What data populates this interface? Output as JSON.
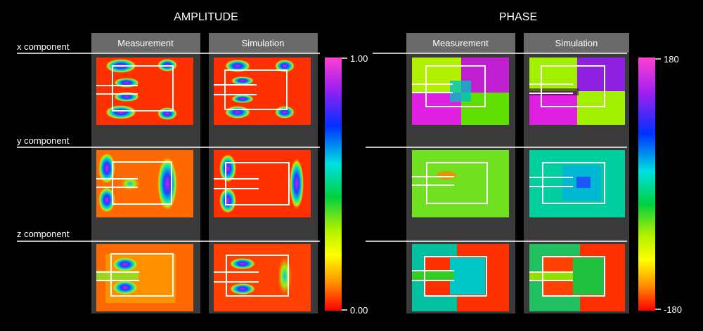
{
  "amplitude": {
    "title": "AMPLITUDE",
    "columns": [
      "Measurement",
      "Simulation"
    ],
    "colorbar": {
      "max_label": "1.00",
      "min_label": "0.00"
    }
  },
  "phase": {
    "title": "PHASE",
    "columns": [
      "Measurement",
      "Simulation"
    ],
    "colorbar": {
      "max_label": "180",
      "min_label": "-180"
    }
  },
  "rows": [
    "x component",
    "y component",
    "z component"
  ]
}
